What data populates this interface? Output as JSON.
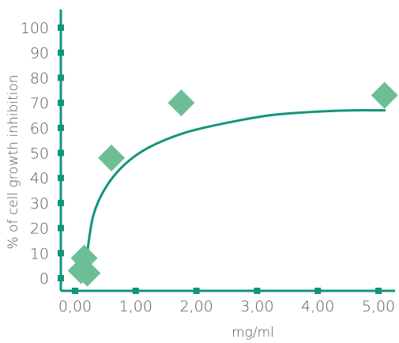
{
  "chart_data": {
    "type": "scatter",
    "title": "",
    "xlabel": "mg/ml",
    "ylabel": "% of cell growth inhibition",
    "xlim": [
      0,
      5
    ],
    "ylim": [
      0,
      100
    ],
    "x_tick_labels": [
      "0,00",
      "1,00",
      "2,00",
      "3,00",
      "4,00",
      "5,00"
    ],
    "y_tick_labels": [
      "0",
      "10",
      "20",
      "30",
      "40",
      "50",
      "60",
      "70",
      "80",
      "90",
      "100"
    ],
    "points": [
      {
        "x": 0.1,
        "y": 3
      },
      {
        "x": 0.2,
        "y": 2
      },
      {
        "x": 0.15,
        "y": 8
      },
      {
        "x": 0.6,
        "y": 48
      },
      {
        "x": 1.75,
        "y": 70
      },
      {
        "x": 5.1,
        "y": 73
      }
    ],
    "trend_curve": [
      {
        "x": 0.2,
        "y": 10
      },
      {
        "x": 0.3,
        "y": 25
      },
      {
        "x": 0.5,
        "y": 36
      },
      {
        "x": 0.8,
        "y": 45
      },
      {
        "x": 1.2,
        "y": 52
      },
      {
        "x": 1.8,
        "y": 58
      },
      {
        "x": 2.5,
        "y": 62
      },
      {
        "x": 3.2,
        "y": 65
      },
      {
        "x": 4.0,
        "y": 66.5
      },
      {
        "x": 4.6,
        "y": 67
      },
      {
        "x": 5.1,
        "y": 67
      }
    ],
    "grid": false,
    "colors": {
      "axis": "#11957a",
      "marker": "#6cbe96",
      "curve": "#11957a",
      "tick_marker": "#11957a"
    }
  }
}
